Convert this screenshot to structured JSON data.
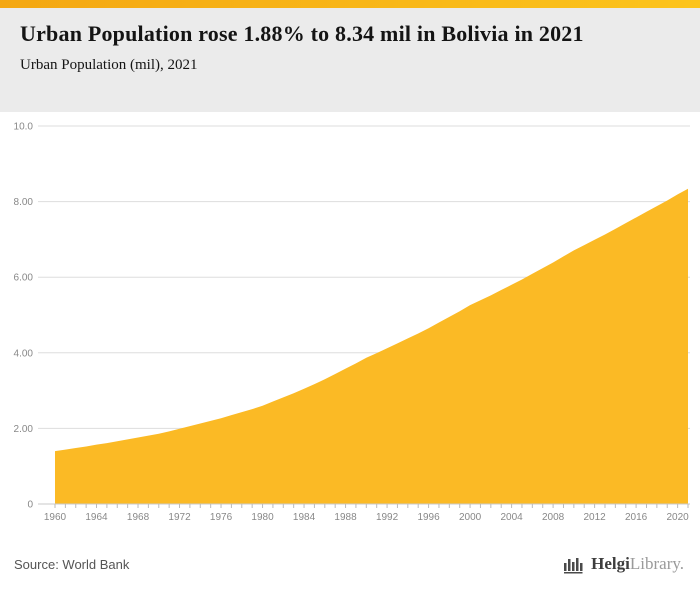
{
  "header": {
    "title": "Urban Population rose 1.88% to 8.34 mil in Bolivia in 2021",
    "subtitle": "Urban Population (mil), 2021"
  },
  "footer": {
    "source": "Source: World Bank",
    "logo_primary": "Helgi",
    "logo_secondary": "Library."
  },
  "colors": {
    "topbar_left": "#F4A712",
    "topbar_right": "#FCC41C",
    "header_bg": "#EBEBEB",
    "area_fill": "#FBBA25",
    "grid_line": "#DDDDDD",
    "axis_line": "#C9C9C9",
    "tick_line": "#BBBBBB",
    "axis_text": "#888888",
    "title_text": "#141414",
    "source_text": "#555555"
  },
  "chart_data": {
    "type": "area",
    "title": "Urban Population (mil), 2021",
    "xlabel": "",
    "ylabel": "",
    "ylim": [
      0,
      10
    ],
    "grid": true,
    "legend": false,
    "yticks": [
      {
        "value": 0,
        "label": "0"
      },
      {
        "value": 2,
        "label": "2.00"
      },
      {
        "value": 4,
        "label": "4.00"
      },
      {
        "value": 6,
        "label": "6.00"
      },
      {
        "value": 8,
        "label": "8.00"
      },
      {
        "value": 10,
        "label": "10.0"
      }
    ],
    "xticks": [
      1960,
      1964,
      1968,
      1972,
      1976,
      1980,
      1984,
      1988,
      1992,
      1996,
      2000,
      2004,
      2008,
      2012,
      2016,
      2020
    ],
    "x": [
      1960,
      1961,
      1962,
      1963,
      1964,
      1965,
      1966,
      1967,
      1968,
      1969,
      1970,
      1971,
      1972,
      1973,
      1974,
      1975,
      1976,
      1977,
      1978,
      1979,
      1980,
      1981,
      1982,
      1983,
      1984,
      1985,
      1986,
      1987,
      1988,
      1989,
      1990,
      1991,
      1992,
      1993,
      1994,
      1995,
      1996,
      1997,
      1998,
      1999,
      2000,
      2001,
      2002,
      2003,
      2004,
      2005,
      2006,
      2007,
      2008,
      2009,
      2010,
      2011,
      2012,
      2013,
      2014,
      2015,
      2016,
      2017,
      2018,
      2019,
      2020,
      2021
    ],
    "values": [
      1.4,
      1.44,
      1.48,
      1.52,
      1.57,
      1.61,
      1.66,
      1.71,
      1.76,
      1.81,
      1.86,
      1.92,
      1.99,
      2.06,
      2.13,
      2.2,
      2.27,
      2.35,
      2.43,
      2.51,
      2.6,
      2.71,
      2.82,
      2.93,
      3.05,
      3.17,
      3.3,
      3.44,
      3.58,
      3.72,
      3.87,
      3.99,
      4.12,
      4.25,
      4.38,
      4.51,
      4.65,
      4.8,
      4.95,
      5.1,
      5.26,
      5.39,
      5.52,
      5.66,
      5.8,
      5.94,
      6.09,
      6.24,
      6.39,
      6.55,
      6.71,
      6.85,
      6.99,
      7.13,
      7.28,
      7.43,
      7.58,
      7.73,
      7.88,
      8.03,
      8.19,
      8.34
    ]
  }
}
